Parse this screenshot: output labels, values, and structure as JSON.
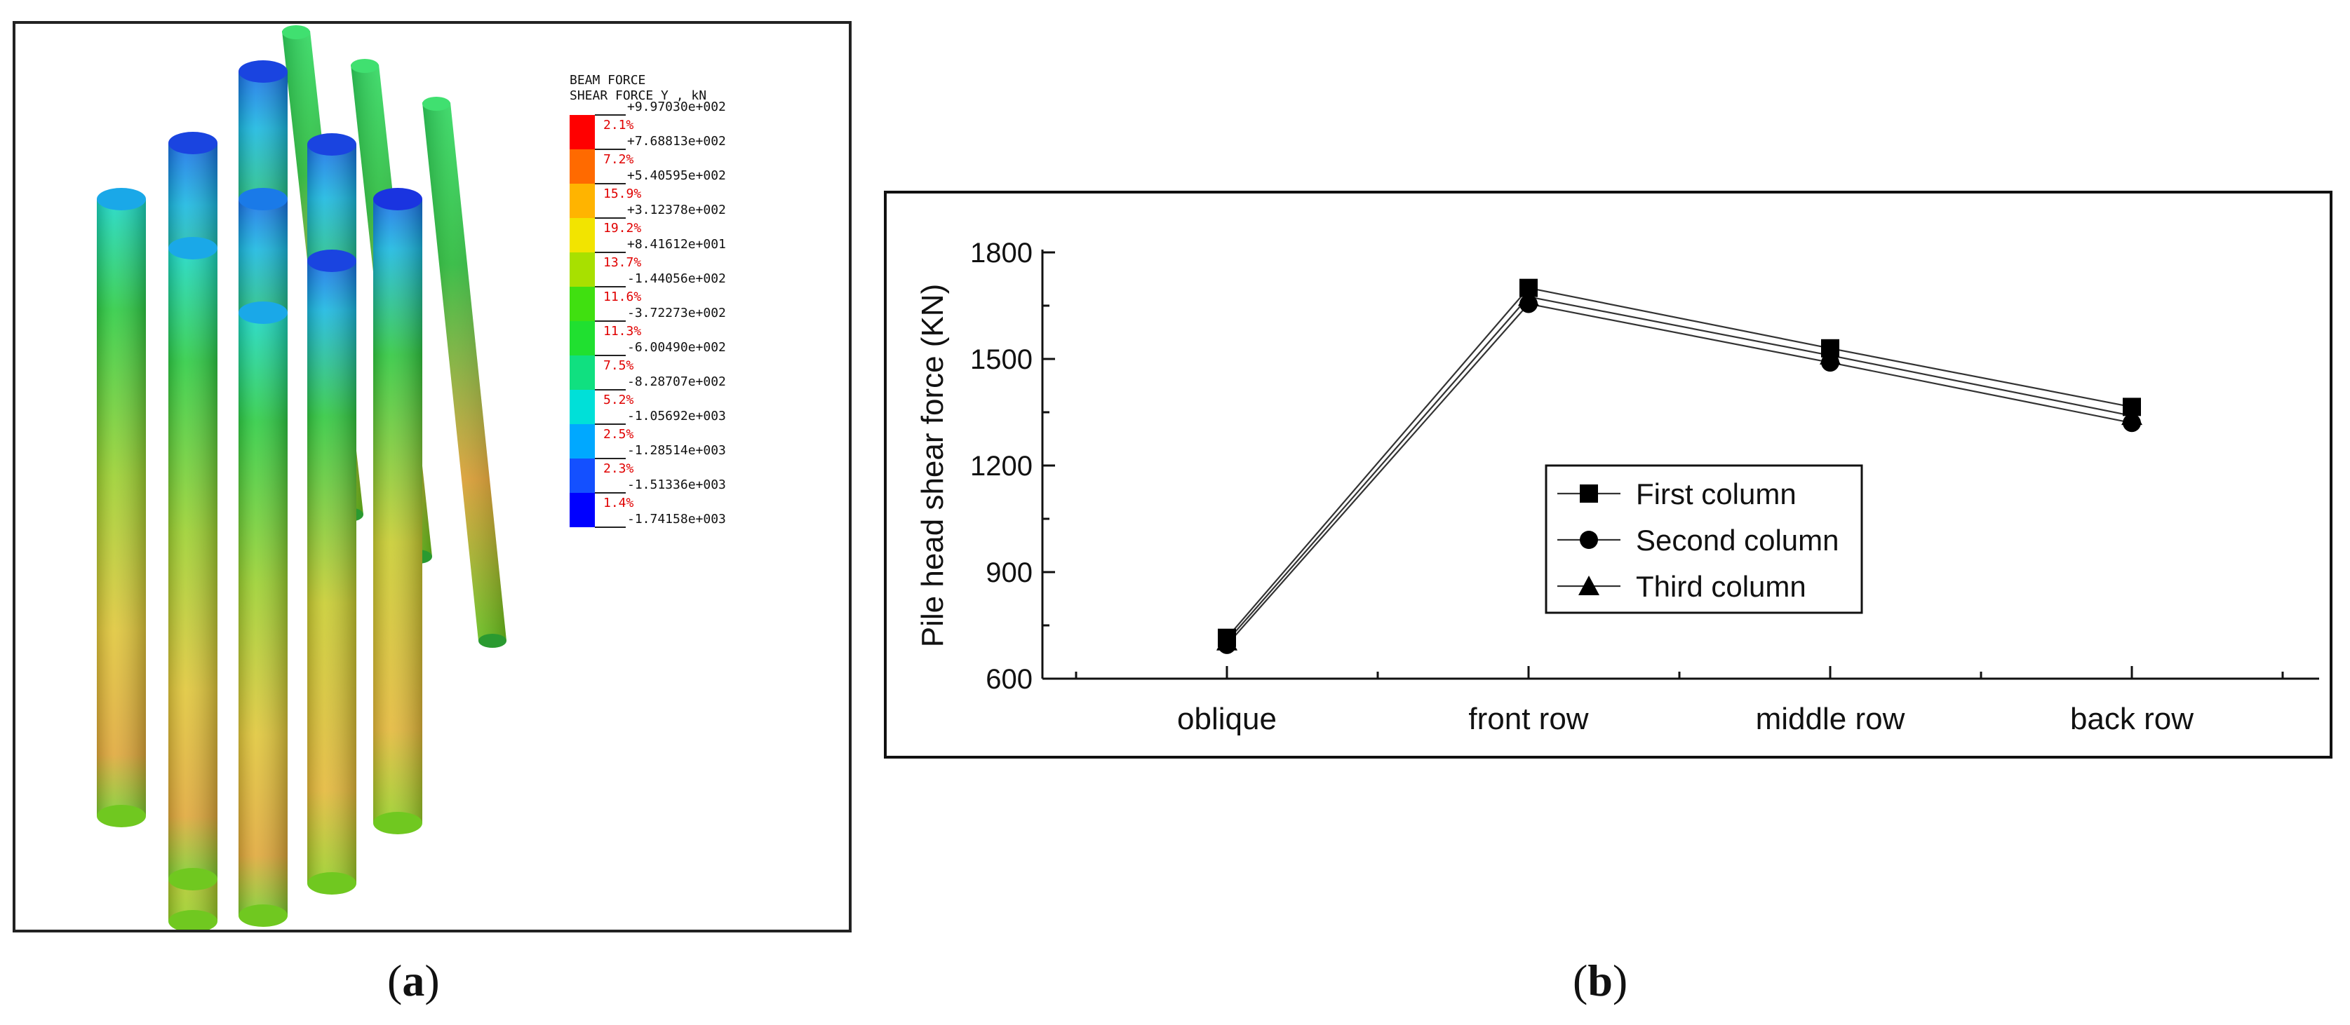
{
  "captions": {
    "a": "a",
    "b": "b"
  },
  "panel_a": {
    "legend_title_1": "BEAM FORCE",
    "legend_title_2": "SHEAR FORCE Y , kN",
    "legend_values": [
      "+9.97030e+002",
      "+7.68813e+002",
      "+5.40595e+002",
      "+3.12378e+002",
      "+8.41612e+001",
      "-1.44056e+002",
      "-3.72273e+002",
      "-6.00490e+002",
      "-8.28707e+002",
      "-1.05692e+003",
      "-1.28514e+003",
      "-1.51336e+003",
      "-1.74158e+003"
    ],
    "legend_percents": [
      "2.1%",
      "7.2%",
      "15.9%",
      "19.2%",
      "13.7%",
      "11.6%",
      "11.3%",
      "7.5%",
      "5.2%",
      "2.5%",
      "2.3%",
      "1.4%"
    ],
    "legend_colors": [
      "#ff0000",
      "#ff6a00",
      "#ffb400",
      "#f2e400",
      "#a8e000",
      "#40e010",
      "#20e030",
      "#10e080",
      "#00e0d8",
      "#00a8ff",
      "#1450ff",
      "#0000ff"
    ]
  },
  "chart_data": {
    "type": "line",
    "ylabel": "Pile head shear force (KN)",
    "xlabel": "",
    "categories": [
      "oblique",
      "front row",
      "middle row",
      "back row"
    ],
    "ylim": [
      600,
      1800
    ],
    "yticks": [
      600,
      900,
      1200,
      1500,
      1800
    ],
    "legend_position": "center-right",
    "series": [
      {
        "name": "First column",
        "marker": "square",
        "values": [
          715,
          1700,
          1530,
          1365
        ]
      },
      {
        "name": "Second column",
        "marker": "circle",
        "values": [
          695,
          1655,
          1490,
          1320
        ]
      },
      {
        "name": "Third column",
        "marker": "triangle",
        "values": [
          705,
          1675,
          1510,
          1340
        ]
      }
    ]
  }
}
